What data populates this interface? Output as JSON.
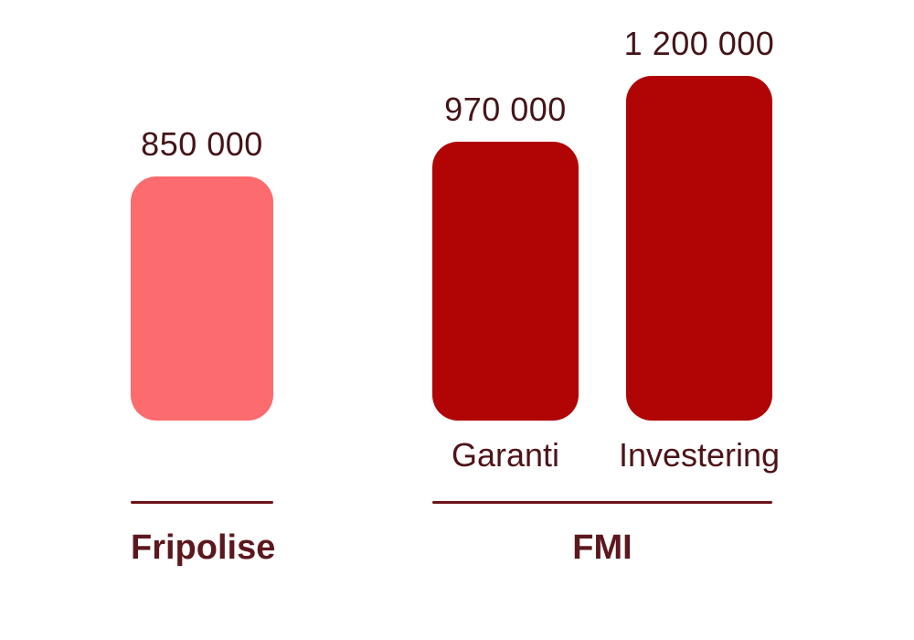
{
  "page": {
    "background_color": "#FFFFFF"
  },
  "chart_data": {
    "type": "bar",
    "categories": [
      "Fripolise",
      "Garanti",
      "Investering"
    ],
    "values": [
      850000,
      970000,
      1200000
    ],
    "value_labels": [
      "850 000",
      "970 000",
      "1 200 000"
    ],
    "bar_category_labels": [
      "",
      "Garanti",
      "Investering"
    ],
    "bar_colors": [
      "#FC6B6E",
      "#B10405",
      "#B10405"
    ],
    "groups": [
      {
        "label": "Fripolise",
        "bar_indices": [
          0
        ]
      },
      {
        "label": "FMI",
        "bar_indices": [
          1,
          2
        ]
      }
    ],
    "title": "",
    "xlabel": "",
    "ylabel": "",
    "ylim": [
      0,
      1200000
    ],
    "grid": false,
    "legend": false,
    "value_label_color": "#441418",
    "category_label_color": "#4E1318",
    "group_label_color": "#5C181D",
    "divider_color": "#6E1419"
  }
}
